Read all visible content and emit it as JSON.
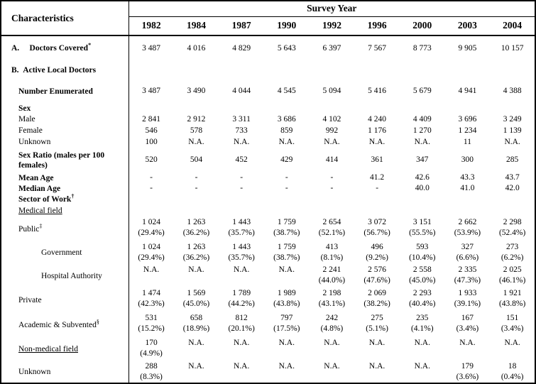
{
  "header": {
    "characteristics_label": "Characteristics",
    "survey_year_label": "Survey Year",
    "years": [
      "1982",
      "1984",
      "1987",
      "1990",
      "1992",
      "1996",
      "2000",
      "2003",
      "2004"
    ]
  },
  "table": {
    "rows": [
      {
        "label": "A.     Doctors Covered",
        "sup": "*",
        "bold": true,
        "indent": 0,
        "values": [
          "3 487",
          "4 016",
          "4 829",
          "5 643",
          "6 397",
          "7 567",
          "8 773",
          "9 905",
          "10 157"
        ]
      },
      {
        "label": "B.  Active Local Doctors",
        "bold": true,
        "indent": 0,
        "values": [
          "",
          "",
          "",
          "",
          "",
          "",
          "",
          "",
          ""
        ]
      },
      {
        "label": "Number Enumerated",
        "bold": true,
        "indent": 1,
        "values": [
          "3 487",
          "3 490",
          "4 044",
          "4 545",
          "5 094",
          "5 416",
          "5 679",
          "4 941",
          "4 388"
        ]
      },
      {
        "label": "Sex",
        "bold": true,
        "indent": 1,
        "values": [
          "",
          "",
          "",
          "",
          "",
          "",
          "",
          "",
          ""
        ]
      },
      {
        "label": "Male",
        "indent": 1,
        "values": [
          "2 841",
          "2 912",
          "3 311",
          "3 686",
          "4 102",
          "4 240",
          "4 409",
          "3 696",
          "3 249"
        ]
      },
      {
        "label": "Female",
        "indent": 1,
        "values": [
          "546",
          "578",
          "733",
          "859",
          "992",
          "1 176",
          "1 270",
          "1 234",
          "1 139"
        ]
      },
      {
        "label": "Unknown",
        "indent": 1,
        "values": [
          "100",
          "N.A.",
          "N.A.",
          "N.A.",
          "N.A.",
          "N.A.",
          "N.A.",
          "11",
          "N.A."
        ]
      },
      {
        "label": "Sex Ratio (males per 100 females)",
        "bold": true,
        "indent": 1,
        "values": [
          "520",
          "504",
          "452",
          "429",
          "414",
          "361",
          "347",
          "300",
          "285"
        ]
      },
      {
        "label": "Mean Age",
        "bold": true,
        "indent": 1,
        "values": [
          "-",
          "-",
          "-",
          "-",
          "-",
          "41.2",
          "42.6",
          "43.3",
          "43.7"
        ]
      },
      {
        "label": "Median Age",
        "bold": true,
        "indent": 1,
        "values": [
          "-",
          "-",
          "-",
          "-",
          "-",
          "-",
          "40.0",
          "41.0",
          "42.0"
        ]
      },
      {
        "label": "Sector of Work",
        "sup": "†",
        "bold": true,
        "indent": 1,
        "values": [
          "",
          "",
          "",
          "",
          "",
          "",
          "",
          "",
          ""
        ]
      },
      {
        "label": "Medical field",
        "underline": true,
        "indent": 1,
        "values": [
          "",
          "",
          "",
          "",
          "",
          "",
          "",
          "",
          ""
        ]
      },
      {
        "label": "Public",
        "sup": "‡",
        "indent": 1,
        "values": [
          "1 024\n(29.4%)",
          "1 263\n(36.2%)",
          "1 443\n(35.7%)",
          "1 759\n(38.7%)",
          "2 654\n(52.1%)",
          "3 072\n(56.7%)",
          "3 151\n(55.5%)",
          "2 662\n(53.9%)",
          "2 298\n(52.4%)"
        ]
      },
      {
        "label": "Government",
        "indent": 2,
        "values": [
          "1 024\n(29.4%)",
          "1 263\n(36.2%)",
          "1 443\n(35.7%)",
          "1 759\n(38.7%)",
          "413\n(8.1%)",
          "496\n(9.2%)",
          "593\n(10.4%)",
          "327\n(6.6%)",
          "273\n(6.2%)"
        ]
      },
      {
        "label": "Hospital Authority",
        "indent": 2,
        "values": [
          "N.A.",
          "N.A.",
          "N.A.",
          "N.A.",
          "2 241\n(44.0%)",
          "2 576\n(47.6%)",
          "2 558\n(45.0%)",
          "2 335\n(47.3%)",
          "2 025\n(46.1%)"
        ]
      },
      {
        "label": "Private",
        "indent": 1,
        "values": [
          "1 474\n(42.3%)",
          "1 569\n(45.0%)",
          "1 789\n(44.2%)",
          "1 989\n(43.8%)",
          "2 198\n(43.1%)",
          "2 069\n(38.2%)",
          "2 293\n(40.4%)",
          "1 933\n(39.1%)",
          "1 921\n(43.8%)"
        ]
      },
      {
        "label": "Academic & Subvented",
        "sup": "§",
        "indent": 1,
        "values": [
          "531\n(15.2%)",
          "658\n(18.9%)",
          "812\n(20.1%)",
          "797\n(17.5%)",
          "242\n(4.8%)",
          "275\n(5.1%)",
          "235\n(4.1%)",
          "167\n(3.4%)",
          "151\n(3.4%)"
        ]
      },
      {
        "label": "Non-medical field",
        "underline": true,
        "indent": 1,
        "values": [
          "170\n(4.9%)",
          "N.A.",
          "N.A.",
          "N.A.",
          "N.A.",
          "N.A.",
          "N.A.",
          "N.A.",
          "N.A."
        ]
      },
      {
        "label": "Unknown",
        "indent": 1,
        "values": [
          "288\n(8.3%)",
          "N.A.",
          "N.A.",
          "N.A.",
          "N.A.",
          "N.A.",
          "N.A.",
          "179\n(3.6%)",
          "18\n(0.4%)"
        ]
      }
    ]
  }
}
